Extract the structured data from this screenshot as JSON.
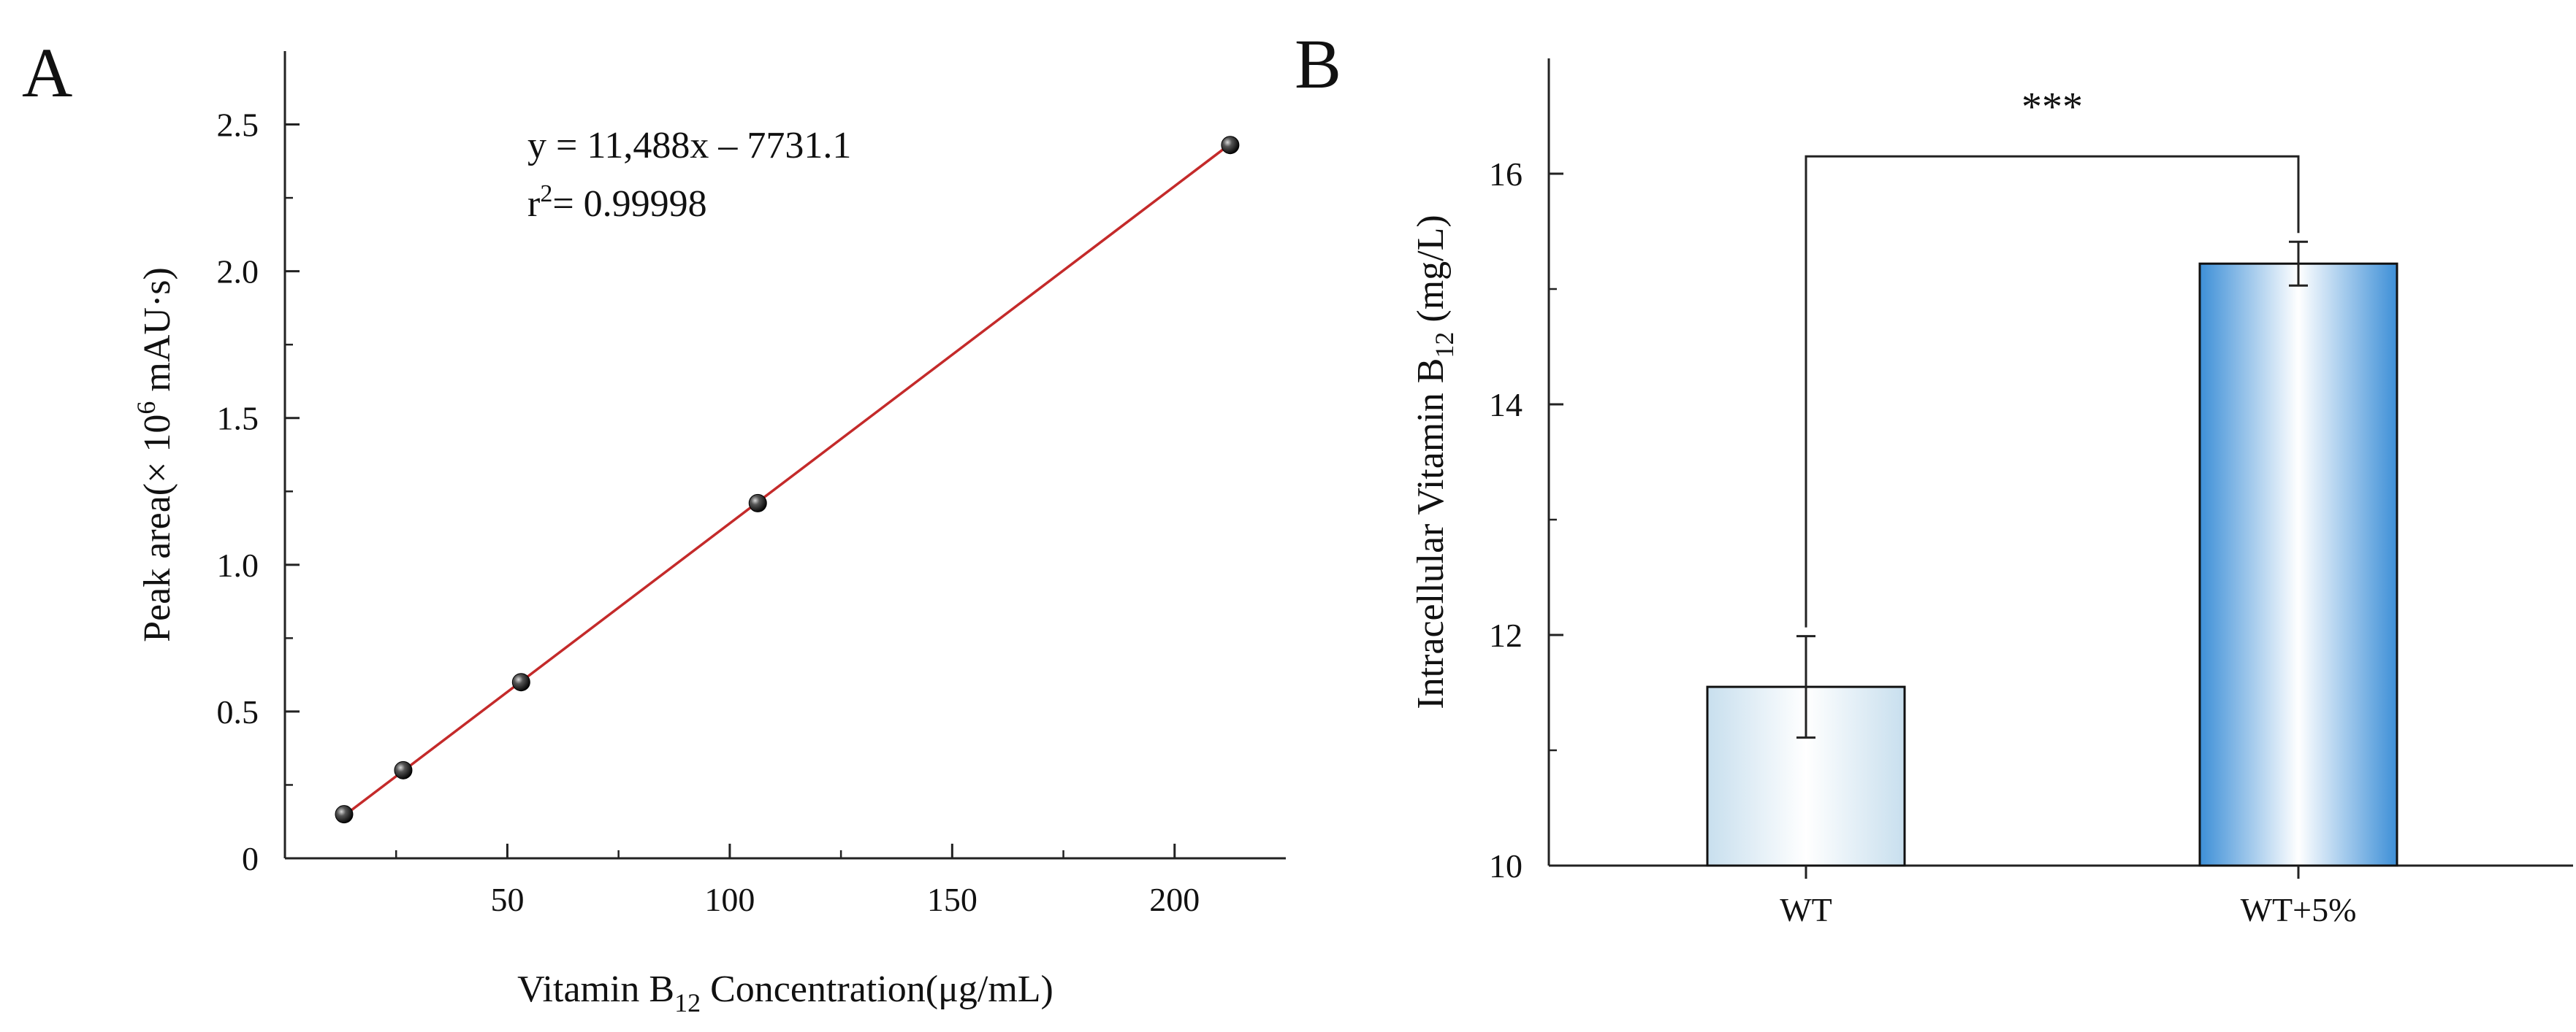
{
  "chart_data": [
    {
      "panel": "A",
      "type": "scatter",
      "xlabel_prefix": "Vitamin B",
      "xlabel_sub": "12",
      "xlabel_suffix": " Concentration(μg/mL)",
      "ylabel_prefix": "Peak area(× 10",
      "ylabel_sup": "6",
      "ylabel_suffix": " mAU·s)",
      "xlim": [
        0,
        225
      ],
      "ylim": [
        0,
        2.75
      ],
      "xticks": [
        50,
        100,
        150,
        200
      ],
      "xticks_minor": [
        25,
        75,
        125,
        175
      ],
      "yticks": [
        0,
        0.5,
        1.0,
        1.5,
        2.0,
        2.5
      ],
      "ytick_labels": [
        "0",
        "0.5",
        "1.0",
        "1.5",
        "2.0",
        "2.5"
      ],
      "yticks_minor": [
        0.25,
        0.75,
        1.25,
        1.75,
        2.25
      ],
      "points": [
        {
          "x": 13.3,
          "y": 0.15
        },
        {
          "x": 26.6,
          "y": 0.3
        },
        {
          "x": 53.1,
          "y": 0.6
        },
        {
          "x": 106.3,
          "y": 1.21
        },
        {
          "x": 212.5,
          "y": 2.43
        }
      ],
      "fit": {
        "x0": 13.3,
        "x1": 212.5,
        "slope": 0.011488,
        "intercept": -0.0077311
      },
      "equation": "y = 11,488x – 7731.1",
      "r2_prefix": "r",
      "r2_sup": "2",
      "r2_value": "= 0.99998"
    },
    {
      "panel": "B",
      "type": "bar",
      "ylabel_prefix": "Intracellular Vitamin B",
      "ylabel_sub": "12",
      "ylabel_suffix": " (mg/L)",
      "categories": [
        "WT",
        "WT+5%"
      ],
      "values": [
        11.55,
        15.22
      ],
      "errors": [
        0.44,
        0.19
      ],
      "ylim": [
        10,
        17
      ],
      "yticks": [
        10,
        12,
        14,
        16
      ],
      "yticks_minor": [
        11,
        13,
        15
      ],
      "significance": "***",
      "bracket_y": 16.15,
      "bar_colors": [
        "#c8dfee",
        "#3d8fd7"
      ]
    }
  ]
}
